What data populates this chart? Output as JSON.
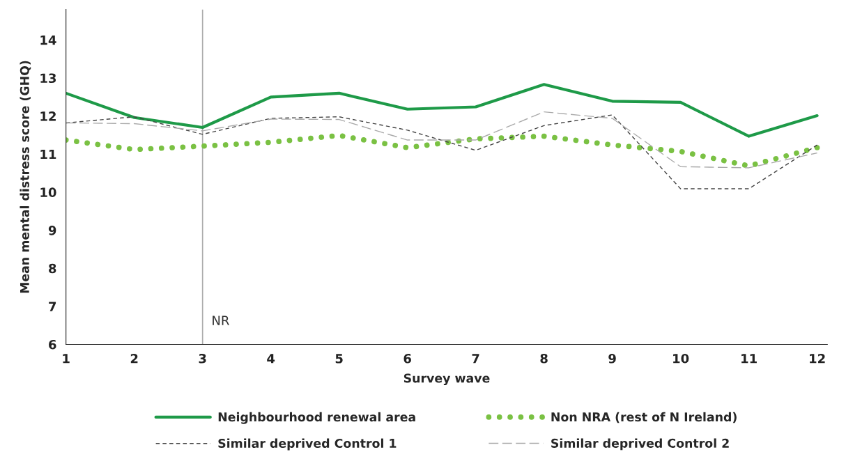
{
  "chart_data": {
    "type": "line",
    "xlabel": "Survey wave",
    "ylabel": "Mean mental distress score (GHQ)",
    "x": [
      1,
      2,
      3,
      4,
      5,
      6,
      7,
      8,
      9,
      10,
      11,
      12
    ],
    "xlim": [
      1,
      12.15
    ],
    "xticks": [
      1,
      2,
      3,
      4,
      5,
      6,
      7,
      8,
      9,
      10,
      11,
      12
    ],
    "ylim": [
      6,
      14.8
    ],
    "yticks": [
      6,
      7,
      8,
      9,
      10,
      11,
      12,
      13,
      14
    ],
    "grid": false,
    "legend": "bottom",
    "marker": "none",
    "ref_lines": [
      {
        "axis": "x",
        "value": 3,
        "label": "NR",
        "color": "#aaaaaa",
        "line_style": "solid"
      }
    ],
    "series": [
      {
        "name": "Neighbourhood renewal area",
        "color": "#1e9a48",
        "line_style": "solid",
        "values": [
          12.6,
          11.96,
          11.7,
          12.5,
          12.6,
          12.18,
          12.24,
          12.83,
          12.39,
          12.36,
          11.47,
          12.01
        ]
      },
      {
        "name": "Non NRA (rest of N Ireland)",
        "color": "#7ac143",
        "line_style": "dotted",
        "values": [
          11.37,
          11.12,
          11.21,
          11.31,
          11.49,
          11.17,
          11.4,
          11.47,
          11.24,
          11.07,
          10.69,
          11.17
        ]
      },
      {
        "name": "Similar deprived Control 1",
        "color": "#444444",
        "line_style": "dashed",
        "values": [
          11.82,
          11.98,
          11.52,
          11.94,
          11.98,
          11.63,
          11.1,
          11.75,
          12.03,
          10.09,
          10.09,
          11.24
        ]
      },
      {
        "name": "Similar deprived Control 2",
        "color": "#aaaaaa",
        "line_style": "dashed",
        "values": [
          11.82,
          11.8,
          11.61,
          11.92,
          11.91,
          11.37,
          11.37,
          12.11,
          11.94,
          10.67,
          10.64,
          11.03
        ]
      }
    ]
  }
}
